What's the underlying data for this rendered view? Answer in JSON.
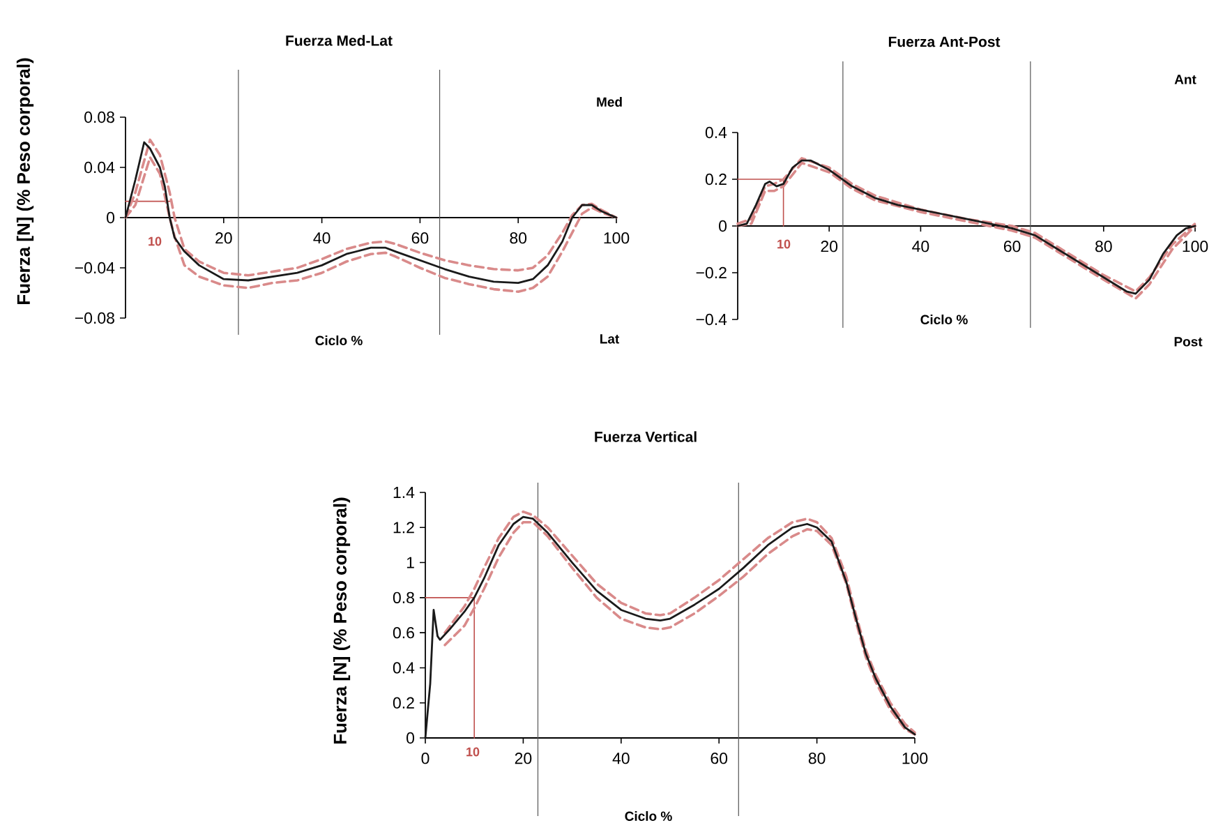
{
  "chart_data": [
    {
      "type": "line",
      "title": "Fuerza Med-Lat",
      "xlabel": "Ciclo %",
      "ylabel": "Fuerza [N] (% Peso corporal)",
      "xlim": [
        0,
        100
      ],
      "ylim": [
        -0.08,
        0.08
      ],
      "xticks": [
        20,
        40,
        60,
        80,
        100
      ],
      "yticks": [
        {
          "value": -0.08,
          "label": "−0.08"
        },
        {
          "value": -0.04,
          "label": "−0.04"
        },
        0,
        0.04,
        0.08
      ],
      "marker": "none",
      "ref_lines": [
        {
          "axis": "x",
          "value": 23,
          "color": "#555555"
        },
        {
          "axis": "x",
          "value": 64,
          "color": "#555555"
        }
      ],
      "annotations": [
        "Med",
        "Lat",
        "10"
      ],
      "series": [
        {
          "color": "#c0504d",
          "line_style": "solid",
          "x": [
            0,
            9
          ],
          "values": [
            0.013,
            0.013
          ]
        },
        {
          "color": "#d98a8a",
          "line_style": "dashed",
          "x": [
            0,
            2,
            5,
            7,
            9,
            10,
            12,
            15,
            20,
            25,
            30,
            35,
            40,
            45,
            50,
            53,
            55,
            60,
            65,
            70,
            75,
            80,
            83,
            86,
            89,
            91,
            93,
            95,
            97,
            100
          ],
          "values": [
            0,
            0.02,
            0.062,
            0.05,
            0.02,
            0,
            -0.025,
            -0.035,
            -0.044,
            -0.046,
            -0.043,
            -0.04,
            -0.033,
            -0.025,
            -0.02,
            -0.019,
            -0.021,
            -0.028,
            -0.034,
            -0.038,
            -0.041,
            -0.042,
            -0.04,
            -0.03,
            -0.012,
            0.002,
            0.01,
            0.011,
            0.006,
            0
          ]
        },
        {
          "color": "#d98a8a",
          "line_style": "dashed",
          "x": [
            0,
            2,
            5,
            7,
            9,
            10,
            12,
            15,
            20,
            25,
            30,
            35,
            40,
            45,
            50,
            53,
            55,
            60,
            65,
            70,
            75,
            80,
            83,
            86,
            89,
            91,
            93,
            95,
            97,
            100
          ],
          "values": [
            0,
            0.01,
            0.048,
            0.035,
            0,
            -0.015,
            -0.038,
            -0.047,
            -0.054,
            -0.056,
            -0.052,
            -0.05,
            -0.044,
            -0.035,
            -0.029,
            -0.028,
            -0.031,
            -0.04,
            -0.048,
            -0.053,
            -0.057,
            -0.059,
            -0.056,
            -0.047,
            -0.027,
            -0.012,
            0.003,
            0.008,
            0.004,
            0
          ]
        },
        {
          "color": "#1a1a1a",
          "line_style": "solid",
          "x": [
            0,
            1,
            2,
            3.8,
            5,
            7,
            8,
            9,
            10,
            12,
            15,
            20,
            25,
            30,
            35,
            40,
            45,
            50,
            53,
            55,
            60,
            65,
            70,
            75,
            80,
            83,
            86,
            89,
            91,
            93,
            95,
            97,
            100
          ],
          "values": [
            0,
            0.015,
            0.03,
            0.06,
            0.055,
            0.04,
            0.025,
            0,
            -0.016,
            -0.027,
            -0.038,
            -0.049,
            -0.05,
            -0.047,
            -0.044,
            -0.038,
            -0.029,
            -0.024,
            -0.024,
            -0.027,
            -0.034,
            -0.041,
            -0.047,
            -0.051,
            -0.052,
            -0.049,
            -0.038,
            -0.019,
            0,
            0.01,
            0.01,
            0.005,
            0
          ]
        }
      ]
    },
    {
      "type": "line",
      "title": "Fuerza Ant-Post",
      "xlabel": "Ciclo %",
      "xlim": [
        0,
        100
      ],
      "ylim": [
        -0.4,
        0.4
      ],
      "xticks": [
        20,
        40,
        60,
        80,
        100
      ],
      "yticks": [
        {
          "value": -0.4,
          "label": "−0.4"
        },
        {
          "value": -0.2,
          "label": "−0.2"
        },
        0,
        0.2,
        0.4
      ],
      "marker": "none",
      "ref_lines": [
        {
          "axis": "x",
          "value": 23,
          "color": "#555555"
        },
        {
          "axis": "x",
          "value": 64,
          "color": "#555555"
        }
      ],
      "annotations": [
        "Ant",
        "Post",
        "10"
      ],
      "series": [
        {
          "color": "#c0504d",
          "line_style": "solid",
          "x": [
            0,
            10,
            10
          ],
          "values": [
            0.2,
            0.2,
            0
          ]
        },
        {
          "color": "#d98a8a",
          "line_style": "dashed",
          "x": [
            0,
            3,
            6,
            8,
            10,
            14,
            20,
            25,
            30,
            40,
            50,
            60,
            65,
            70,
            80,
            87,
            90,
            95,
            100
          ],
          "values": [
            0.01,
            0.03,
            0.17,
            0.18,
            0.2,
            0.29,
            0.25,
            0.18,
            0.13,
            0.07,
            0.03,
            0,
            -0.03,
            -0.09,
            -0.21,
            -0.28,
            -0.22,
            -0.08,
            0.01
          ]
        },
        {
          "color": "#d98a8a",
          "line_style": "dashed",
          "x": [
            0,
            3,
            6,
            8,
            10,
            14,
            20,
            25,
            30,
            40,
            50,
            60,
            65,
            70,
            80,
            87,
            90,
            95,
            100
          ],
          "values": [
            0,
            0.01,
            0.15,
            0.15,
            0.17,
            0.27,
            0.23,
            0.16,
            0.11,
            0.06,
            0.02,
            -0.02,
            -0.05,
            -0.11,
            -0.23,
            -0.31,
            -0.25,
            -0.1,
            0
          ]
        },
        {
          "color": "#1a1a1a",
          "line_style": "solid",
          "x": [
            0,
            2,
            4,
            6,
            7,
            8.5,
            10,
            12,
            14,
            16,
            20,
            25,
            30,
            35,
            40,
            45,
            50,
            55,
            60,
            65,
            70,
            75,
            80,
            85,
            87,
            90,
            93,
            96,
            98,
            100
          ],
          "values": [
            0,
            0.01,
            0.09,
            0.18,
            0.19,
            0.17,
            0.18,
            0.25,
            0.28,
            0.28,
            0.24,
            0.17,
            0.12,
            0.09,
            0.07,
            0.05,
            0.03,
            0.01,
            -0.01,
            -0.04,
            -0.1,
            -0.16,
            -0.22,
            -0.28,
            -0.29,
            -0.23,
            -0.12,
            -0.04,
            -0.01,
            0
          ]
        }
      ]
    },
    {
      "type": "line",
      "title": "Fuerza Vertical",
      "xlabel": "Ciclo %",
      "ylabel": "Fuerza [N] (% Peso corporal)",
      "xlim": [
        0,
        100
      ],
      "ylim": [
        0,
        1.4
      ],
      "xticks": [
        0,
        20,
        40,
        60,
        80,
        100
      ],
      "yticks": [
        0,
        0.2,
        0.4,
        0.6,
        0.8,
        1,
        1.2,
        1.4
      ],
      "marker": "none",
      "ref_lines": [
        {
          "axis": "x",
          "value": 23,
          "color": "#555555"
        },
        {
          "axis": "x",
          "value": 64,
          "color": "#555555"
        }
      ],
      "annotations": [
        "10"
      ],
      "series": [
        {
          "color": "#c0504d",
          "line_style": "solid",
          "x": [
            0,
            10,
            10
          ],
          "values": [
            0.8,
            0.8,
            0
          ]
        },
        {
          "color": "#d98a8a",
          "line_style": "dashed",
          "x": [
            4,
            8,
            10,
            12,
            15,
            18,
            20,
            22,
            25,
            30,
            35,
            40,
            45,
            48,
            50,
            55,
            60,
            65,
            70,
            75,
            78,
            80,
            83,
            86,
            88,
            90,
            92,
            95,
            98,
            100
          ],
          "values": [
            0.6,
            0.75,
            0.85,
            0.97,
            1.14,
            1.26,
            1.29,
            1.27,
            1.2,
            1.04,
            0.88,
            0.77,
            0.71,
            0.7,
            0.71,
            0.8,
            0.9,
            1.02,
            1.14,
            1.23,
            1.25,
            1.23,
            1.14,
            0.92,
            0.7,
            0.5,
            0.36,
            0.2,
            0.08,
            0.03
          ]
        },
        {
          "color": "#d98a8a",
          "line_style": "dashed",
          "x": [
            4,
            8,
            10,
            12,
            15,
            18,
            20,
            22,
            25,
            30,
            35,
            40,
            45,
            48,
            50,
            55,
            60,
            65,
            70,
            75,
            78,
            80,
            83,
            86,
            88,
            90,
            92,
            95,
            98,
            100
          ],
          "values": [
            0.53,
            0.64,
            0.74,
            0.85,
            1.03,
            1.17,
            1.23,
            1.23,
            1.15,
            0.97,
            0.8,
            0.68,
            0.63,
            0.62,
            0.63,
            0.71,
            0.81,
            0.92,
            1.05,
            1.15,
            1.19,
            1.18,
            1.1,
            0.88,
            0.66,
            0.46,
            0.32,
            0.16,
            0.05,
            0.02
          ]
        },
        {
          "color": "#1a1a1a",
          "line_style": "solid",
          "x": [
            0,
            1,
            1.7,
            2.5,
            3,
            5,
            8,
            10,
            12,
            15,
            18,
            20,
            22,
            25,
            30,
            35,
            40,
            45,
            48,
            50,
            55,
            60,
            65,
            70,
            75,
            78,
            80,
            83,
            86,
            88,
            90,
            92,
            95,
            98,
            100
          ],
          "values": [
            0,
            0.31,
            0.73,
            0.58,
            0.56,
            0.62,
            0.72,
            0.8,
            0.91,
            1.1,
            1.22,
            1.26,
            1.25,
            1.17,
            1.0,
            0.84,
            0.73,
            0.68,
            0.67,
            0.68,
            0.76,
            0.85,
            0.97,
            1.1,
            1.2,
            1.22,
            1.2,
            1.12,
            0.89,
            0.68,
            0.48,
            0.34,
            0.18,
            0.06,
            0.02
          ]
        }
      ]
    }
  ]
}
